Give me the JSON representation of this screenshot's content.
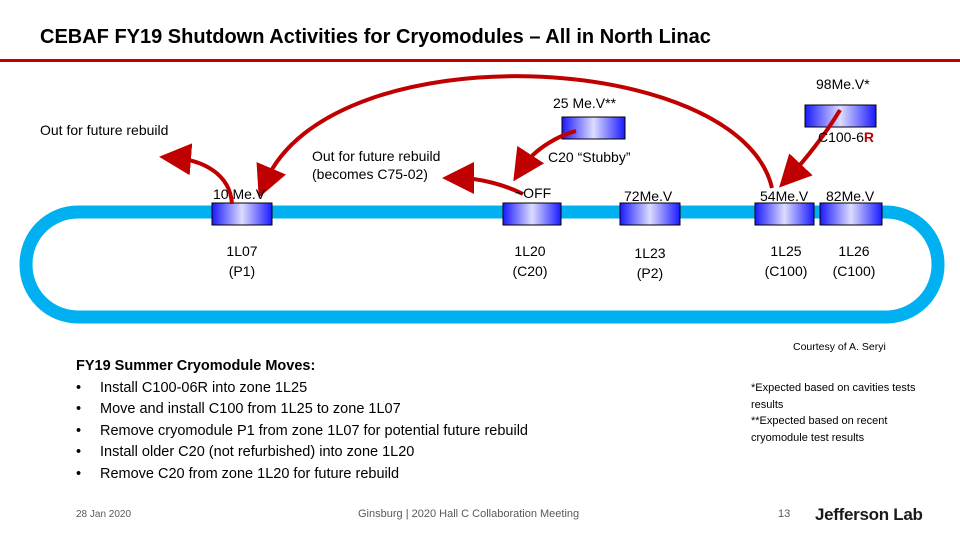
{
  "title": "CEBAF FY19 Shutdown Activities for Cryomodules –  All in North Linac",
  "colors": {
    "accent": "#c00000",
    "linac": "#00b0f0",
    "module_dark": "#1a1aff",
    "module_light": "#d8d8ff",
    "arrow": "#c00000"
  },
  "labels": {
    "energy_98": "98Me.V*",
    "energy_25": "25 Me.V**",
    "out_future_left": "Out for future rebuild",
    "c100_6": "C100-6",
    "c100_r": "R",
    "out_future_mid_line1": "Out for future rebuild",
    "out_future_mid_line2": "(becomes C75-02)",
    "c20_stubby": "C20 “Stubby”",
    "energy_10": "10 Me.V",
    "energy_off": "~OFF",
    "energy_72": "72Me.V",
    "energy_54": "54Me.V",
    "energy_82": "82Me.V"
  },
  "zones": [
    {
      "id": "1L07",
      "type": "(P1)"
    },
    {
      "id": "1L20",
      "type": "(C20)"
    },
    {
      "id": "1L23",
      "type": "(P2)"
    },
    {
      "id": "1L25",
      "type": "(C100)"
    },
    {
      "id": "1L26",
      "type": "(C100)"
    }
  ],
  "moves": {
    "heading": "FY19 Summer Cryomodule Moves:",
    "items": [
      "Install C100-06R into zone 1L25",
      "Move and install C100 from 1L25 to zone 1L07",
      "Remove cryomodule P1 from zone 1L07 for potential future rebuild",
      "Install older C20 (not refurbished) into zone 1L20",
      "Remove C20 from zone 1L20 for future rebuild"
    ]
  },
  "courtesy": "Courtesy of A. Seryi",
  "notes": [
    "*Expected based on cavities tests",
    "results",
    "**Expected based on recent",
    "cryomodule test results"
  ],
  "footer": {
    "date": "28 Jan 2020",
    "center": "Ginsburg | 2020 Hall C Collaboration Meeting",
    "page": "13",
    "logo": "Jefferson Lab"
  }
}
